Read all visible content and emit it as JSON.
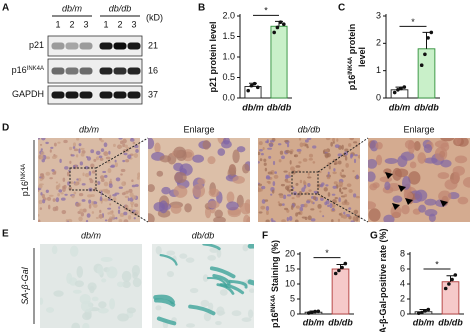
{
  "panels": {
    "A": {
      "letter": "A",
      "groups": [
        "db/m",
        "db/db"
      ],
      "lanes": [
        "1",
        "2",
        "3",
        "1",
        "2",
        "3"
      ],
      "unit": "(kD)",
      "rows": [
        {
          "name": [
            {
              "text": "p21"
            }
          ],
          "kd": 21
        },
        {
          "name": [
            {
              "text": "p16"
            },
            {
              "text": "INK4A",
              "sup": true
            }
          ],
          "kd": 16
        },
        {
          "name": [
            {
              "text": "GAPDH"
            }
          ],
          "kd": 37
        }
      ]
    },
    "D": {
      "letter": "D",
      "side": [
        {
          "text": "p16"
        },
        {
          "text": "INK4A",
          "sup": true
        }
      ],
      "headers": [
        "db/m",
        "Enlarge",
        "db/db",
        "Enlarge"
      ]
    },
    "E": {
      "letter": "E",
      "side": [
        {
          "text": "SA-β-Gal"
        }
      ],
      "headers": [
        "db/m",
        "db/db"
      ]
    }
  },
  "chart_data": [
    {
      "type": "bar",
      "letter": "B",
      "ylabel": [
        [
          {
            "text": "p21 protein level"
          }
        ]
      ],
      "categories": [
        "db/m",
        "db/db"
      ],
      "values": [
        0.28,
        1.75
      ],
      "errors": [
        0.08,
        0.12
      ],
      "points": [
        [
          0.18,
          0.3,
          0.35,
          0.26
        ],
        [
          1.6,
          1.72,
          1.85,
          1.8
        ]
      ],
      "colors": [
        "#ffffff",
        "#c9f0c9"
      ],
      "edge_colors": [
        "#222222",
        "#2f8f3a"
      ],
      "ylim": [
        0,
        2
      ],
      "yticks": [
        {
          "value": 0,
          "label": "0.0"
        },
        0.5,
        {
          "value": 1,
          "label": "1.0"
        },
        1.5,
        {
          "value": 2,
          "label": "2.0"
        }
      ],
      "annotation": "*"
    },
    {
      "type": "bar",
      "letter": "C",
      "ylabel": [
        [
          {
            "text": "p16"
          },
          {
            "text": "INK4A",
            "sup": true
          },
          {
            "text": " protein"
          }
        ],
        [
          {
            "text": "level"
          }
        ]
      ],
      "categories": [
        "db/m",
        "db/db"
      ],
      "values": [
        0.3,
        1.8
      ],
      "errors": [
        0.1,
        0.6
      ],
      "points": [
        [
          0.2,
          0.3,
          0.35,
          0.4
        ],
        [
          1.2,
          1.6,
          2.2,
          2.4
        ]
      ],
      "colors": [
        "#ffffff",
        "#c9f0c9"
      ],
      "edge_colors": [
        "#222222",
        "#2f8f3a"
      ],
      "ylim": [
        0,
        3
      ],
      "yticks": [
        0,
        1,
        2,
        3
      ],
      "annotation": "*"
    },
    {
      "type": "bar",
      "letter": "F",
      "ylabel": [
        [
          {
            "text": "p16"
          },
          {
            "text": "INK4A",
            "sup": true
          },
          {
            "text": " Staining (%)"
          }
        ]
      ],
      "categories": [
        "db/m",
        "db/db"
      ],
      "values": [
        0.6,
        15
      ],
      "errors": [
        0.4,
        1.5
      ],
      "points": [
        [
          0.3,
          0.5,
          0.8,
          0.9
        ],
        [
          13.5,
          14.5,
          15.5,
          16.8
        ]
      ],
      "colors": [
        "#ffffff",
        "#f6c9c9"
      ],
      "edge_colors": [
        "#222222",
        "#b03a3a"
      ],
      "ylim": [
        0,
        20
      ],
      "yticks": [
        0,
        5,
        10,
        15,
        20
      ],
      "annotation": "*"
    },
    {
      "type": "bar",
      "letter": "G",
      "ylabel": [
        [
          {
            "text": "SA-β-Gal-positive rate (%)"
          }
        ]
      ],
      "categories": [
        "db/m",
        "db/db"
      ],
      "values": [
        0.3,
        4.3
      ],
      "errors": [
        0.3,
        0.8
      ],
      "points": [
        [
          0.1,
          0.2,
          0.4,
          0.6
        ],
        [
          3.4,
          4.0,
          4.6,
          5.2
        ]
      ],
      "colors": [
        "#ffffff",
        "#f6c9c9"
      ],
      "edge_colors": [
        "#222222",
        "#b03a3a"
      ],
      "ylim": [
        0,
        8
      ],
      "yticks": [
        0,
        2,
        4,
        6,
        8
      ],
      "annotation": "*"
    }
  ]
}
